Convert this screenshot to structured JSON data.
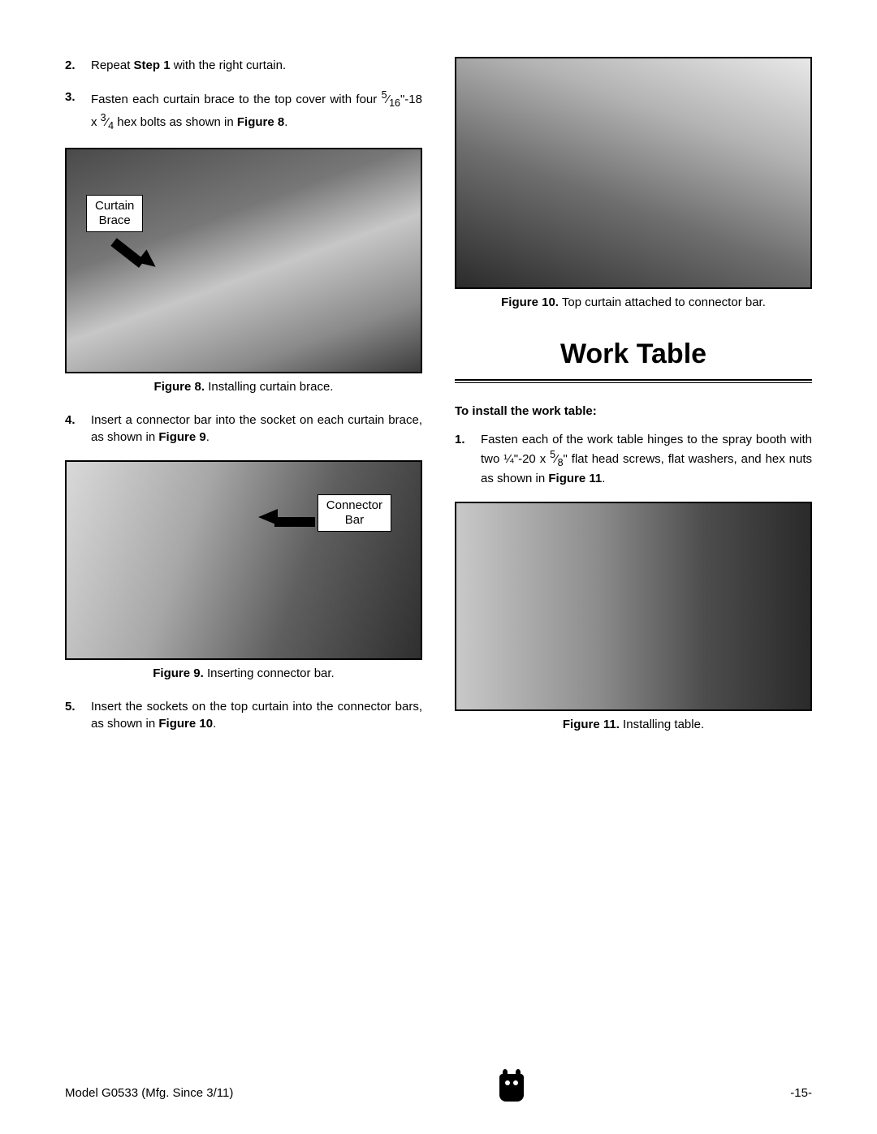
{
  "left": {
    "steps": [
      {
        "n": "2.",
        "html": "Repeat <b>Step 1</b> with the right curtain."
      },
      {
        "n": "3.",
        "html": "Fasten each curtain brace to the top cover with four <sup>5</sup>⁄<sub>16</sub>\"-18 x <sup>3</sup>⁄<sub>4</sub> hex bolts as shown in <b>Figure 8</b>."
      }
    ],
    "fig8": {
      "label": "Curtain\nBrace",
      "caption_bold": "Figure 8.",
      "caption_rest": " Installing curtain brace."
    },
    "steps2": [
      {
        "n": "4.",
        "html": "Insert a connector bar into the socket on each curtain brace, as shown in <b>Figure 9</b>."
      }
    ],
    "fig9": {
      "label": "Connector\nBar",
      "caption_bold": "Figure 9.",
      "caption_rest": " Inserting connector bar."
    },
    "steps3": [
      {
        "n": "5.",
        "html": "Insert the sockets on the top curtain into the connector bars, as shown in <b>Figure 10</b>."
      }
    ]
  },
  "right": {
    "fig10": {
      "caption_bold": "Figure 10.",
      "caption_rest": " Top curtain attached to connector bar."
    },
    "section_title": "Work Table",
    "subhead": "To install the work table:",
    "steps": [
      {
        "n": "1.",
        "html": "Fasten each of the work table hinges to the spray booth with two ¼\"-20 x <sup>5</sup>⁄<sub>8</sub>\" flat head screws, flat washers, and hex nuts as shown in <b>Figure 11</b>."
      }
    ],
    "fig11": {
      "caption_bold": "Figure 11.",
      "caption_rest": " Installing table."
    }
  },
  "footer": {
    "left": "Model G0533 (Mfg. Since 3/11)",
    "right": "-15-"
  },
  "styles": {
    "fig8_height": 278,
    "fig9_height": 246,
    "fig10_height": 286,
    "fig11_height": 258
  }
}
